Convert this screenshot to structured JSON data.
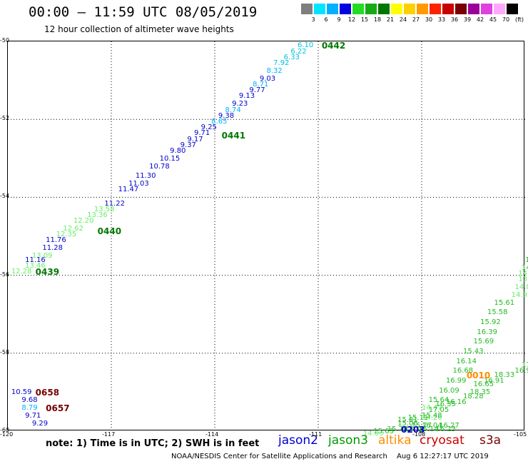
{
  "title": "00:00 – 11:59 UTC 08/05/2019",
  "subtitle": "12 hour collection of altimeter wave heights",
  "legend": {
    "unit": "(ft)",
    "bins": [
      {
        "label": "3",
        "color": "#7f7f7f"
      },
      {
        "label": "6",
        "color": "#00e5ff"
      },
      {
        "label": "9",
        "color": "#00b0ff"
      },
      {
        "label": "12",
        "color": "#0000e0"
      },
      {
        "label": "15",
        "color": "#22dd22"
      },
      {
        "label": "18",
        "color": "#16aa16"
      },
      {
        "label": "21",
        "color": "#007700"
      },
      {
        "label": "24",
        "color": "#ffff00"
      },
      {
        "label": "27",
        "color": "#ffd000"
      },
      {
        "label": "30",
        "color": "#ff9a00"
      },
      {
        "label": "33",
        "color": "#ff2200"
      },
      {
        "label": "36",
        "color": "#c80000"
      },
      {
        "label": "39",
        "color": "#7a0000"
      },
      {
        "label": "42",
        "color": "#9a009a"
      },
      {
        "label": "45",
        "color": "#e040e0"
      },
      {
        "label": "70",
        "color": "#ffa8ff"
      },
      {
        "label": "",
        "color": "#000000"
      }
    ]
  },
  "axes": {
    "lat_ticks": [
      "-50",
      "-52",
      "-54",
      "-56",
      "-58",
      "-60"
    ],
    "lon_ticks": [
      "-120",
      "-117",
      "-114",
      "-111",
      "-108",
      "-105"
    ]
  },
  "note": "note: 1) Time is in UTC; 2) SWH is in feet",
  "satellites": [
    {
      "name": "jason2",
      "color": "#0000cc"
    },
    {
      "name": "jason3",
      "color": "#009900"
    },
    {
      "name": "altika",
      "color": "#ff8c00"
    },
    {
      "name": "cryosat",
      "color": "#cc0000"
    },
    {
      "name": "s3a",
      "color": "#770000"
    }
  ],
  "footer": "NOAA/NESDIS Center for Satellite Applications and Research",
  "timestamp": "Aug  6 12:27:17 UTC 2019",
  "map": {
    "time_labels": [
      {
        "text": "0442",
        "lon": -110.9,
        "lat": -50.1,
        "color": "#007700"
      },
      {
        "text": "0441",
        "lon": -113.8,
        "lat": -52.4,
        "color": "#007700"
      },
      {
        "text": "0440",
        "lon": -117.4,
        "lat": -54.85,
        "color": "#007700"
      },
      {
        "text": "0439",
        "lon": -119.2,
        "lat": -55.9,
        "color": "#007700"
      },
      {
        "text": "0658",
        "lon": -119.2,
        "lat": -59.0,
        "color": "#770000"
      },
      {
        "text": "0657",
        "lon": -118.9,
        "lat": -59.4,
        "color": "#770000"
      },
      {
        "text": "0010",
        "lon": -106.7,
        "lat": -58.55,
        "color": "#ff8c00"
      },
      {
        "text": "0203",
        "lon": -108.6,
        "lat": -59.95,
        "color": "#0000cc"
      }
    ],
    "swh": [
      {
        "text": "6.10",
        "lon": -111.6,
        "lat": -50.1,
        "color": "#00c0e0"
      },
      {
        "text": "6.22",
        "lon": -111.8,
        "lat": -50.25,
        "color": "#00c0e0"
      },
      {
        "text": "6.33",
        "lon": -112.0,
        "lat": -50.4,
        "color": "#00c0e0"
      },
      {
        "text": "7.92",
        "lon": -112.3,
        "lat": -50.55,
        "color": "#00c0e0"
      },
      {
        "text": "8.32",
        "lon": -112.5,
        "lat": -50.75,
        "color": "#00b0ff"
      },
      {
        "text": "9.03",
        "lon": -112.7,
        "lat": -50.95,
        "color": "#0000cc"
      },
      {
        "text": "8.71",
        "lon": -112.9,
        "lat": -51.1,
        "color": "#00b0ff"
      },
      {
        "text": "9.77",
        "lon": -113.0,
        "lat": -51.25,
        "color": "#0000cc"
      },
      {
        "text": "9.13",
        "lon": -113.3,
        "lat": -51.4,
        "color": "#0000cc"
      },
      {
        "text": "9.23",
        "lon": -113.5,
        "lat": -51.6,
        "color": "#0000cc"
      },
      {
        "text": "8.74",
        "lon": -113.7,
        "lat": -51.75,
        "color": "#00b0ff"
      },
      {
        "text": "9.38",
        "lon": -113.9,
        "lat": -51.9,
        "color": "#0000cc"
      },
      {
        "text": "8.65",
        "lon": -114.1,
        "lat": -52.05,
        "color": "#00b0ff"
      },
      {
        "text": "9.25",
        "lon": -114.4,
        "lat": -52.2,
        "color": "#0000cc"
      },
      {
        "text": "9.71",
        "lon": -114.6,
        "lat": -52.35,
        "color": "#0000cc"
      },
      {
        "text": "9.17",
        "lon": -114.8,
        "lat": -52.5,
        "color": "#0000cc"
      },
      {
        "text": "9.37",
        "lon": -115.0,
        "lat": -52.65,
        "color": "#0000cc"
      },
      {
        "text": "9.80",
        "lon": -115.3,
        "lat": -52.8,
        "color": "#0000cc"
      },
      {
        "text": "10.15",
        "lon": -115.6,
        "lat": -53.0,
        "color": "#0000cc"
      },
      {
        "text": "10.78",
        "lon": -115.9,
        "lat": -53.2,
        "color": "#0000cc"
      },
      {
        "text": "11.30",
        "lon": -116.3,
        "lat": -53.45,
        "color": "#0000cc"
      },
      {
        "text": "11.03",
        "lon": -116.5,
        "lat": -53.65,
        "color": "#0000cc"
      },
      {
        "text": "11.47",
        "lon": -116.8,
        "lat": -53.8,
        "color": "#0000cc"
      },
      {
        "text": "11.22",
        "lon": -117.2,
        "lat": -54.15,
        "color": "#0000cc"
      },
      {
        "text": "13.58",
        "lon": -117.5,
        "lat": -54.3,
        "color": "#66ee66"
      },
      {
        "text": "13.36",
        "lon": -117.7,
        "lat": -54.45,
        "color": "#66ee66"
      },
      {
        "text": "12.20",
        "lon": -118.1,
        "lat": -54.6,
        "color": "#66ee66"
      },
      {
        "text": "12.62",
        "lon": -118.4,
        "lat": -54.8,
        "color": "#66ee66"
      },
      {
        "text": "12.35",
        "lon": -118.6,
        "lat": -54.95,
        "color": "#66ee66"
      },
      {
        "text": "11.76",
        "lon": -118.9,
        "lat": -55.1,
        "color": "#0000cc"
      },
      {
        "text": "11.28",
        "lon": -119.0,
        "lat": -55.3,
        "color": "#0000cc"
      },
      {
        "text": "13.09",
        "lon": -119.3,
        "lat": -55.5,
        "color": "#66ee66"
      },
      {
        "text": "11.16",
        "lon": -119.5,
        "lat": -55.6,
        "color": "#0000cc"
      },
      {
        "text": "13.46",
        "lon": -119.5,
        "lat": -55.75,
        "color": "#66ee66"
      },
      {
        "text": "12.28",
        "lon": -119.9,
        "lat": -55.9,
        "color": "#66ee66"
      },
      {
        "text": "10.59",
        "lon": -119.9,
        "lat": -59.0,
        "color": "#0000cc"
      },
      {
        "text": "9.68",
        "lon": -119.6,
        "lat": -59.2,
        "color": "#0000cc"
      },
      {
        "text": "8.79",
        "lon": -119.6,
        "lat": -59.4,
        "color": "#00b0ff"
      },
      {
        "text": "9.71",
        "lon": -119.5,
        "lat": -59.6,
        "color": "#0000cc"
      },
      {
        "text": "9.29",
        "lon": -119.3,
        "lat": -59.8,
        "color": "#0000cc"
      },
      {
        "text": "17",
        "lon": -105.0,
        "lat": -55.6,
        "color": "#22bb22"
      },
      {
        "text": "14.",
        "lon": -105.1,
        "lat": -55.8,
        "color": "#22bb22"
      },
      {
        "text": "14.2",
        "lon": -105.2,
        "lat": -55.95,
        "color": "#66ee66"
      },
      {
        "text": "13.96",
        "lon": -105.2,
        "lat": -56.1,
        "color": "#66ee66"
      },
      {
        "text": "14.85",
        "lon": -105.3,
        "lat": -56.3,
        "color": "#66ee66"
      },
      {
        "text": "14.92",
        "lon": -105.4,
        "lat": -56.5,
        "color": "#66ee66"
      },
      {
        "text": "15.61",
        "lon": -105.9,
        "lat": -56.7,
        "color": "#22bb22"
      },
      {
        "text": "15.58",
        "lon": -106.1,
        "lat": -56.95,
        "color": "#22bb22"
      },
      {
        "text": "15.92",
        "lon": -106.3,
        "lat": -57.2,
        "color": "#22bb22"
      },
      {
        "text": "16.39",
        "lon": -106.4,
        "lat": -57.45,
        "color": "#22bb22"
      },
      {
        "text": "15.69",
        "lon": -106.5,
        "lat": -57.7,
        "color": "#22bb22"
      },
      {
        "text": "15.43",
        "lon": -106.8,
        "lat": -57.95,
        "color": "#22bb22"
      },
      {
        "text": "16.14",
        "lon": -107.0,
        "lat": -58.2,
        "color": "#22bb22"
      },
      {
        "text": "16.68",
        "lon": -107.1,
        "lat": -58.45,
        "color": "#22bb22"
      },
      {
        "text": "16.99",
        "lon": -107.3,
        "lat": -58.7,
        "color": "#22bb22"
      },
      {
        "text": "16.09",
        "lon": -107.5,
        "lat": -58.95,
        "color": "#22bb22"
      },
      {
        "text": "15.64",
        "lon": -107.8,
        "lat": -59.2,
        "color": "#22bb22"
      },
      {
        "text": "14.47",
        "lon": -108.0,
        "lat": -59.4,
        "color": "#66ee66"
      },
      {
        "text": "14.26",
        "lon": -108.0,
        "lat": -59.65,
        "color": "#66ee66"
      },
      {
        "text": "16.04",
        "lon": -108.0,
        "lat": -59.85,
        "color": "#22bb22"
      },
      {
        "text": "16.23",
        "lon": -107.6,
        "lat": -59.95,
        "color": "#22bb22"
      },
      {
        "text": "16.27",
        "lon": -107.5,
        "lat": -59.85,
        "color": "#22bb22"
      },
      {
        "text": "17",
        "lon": -105.1,
        "lat": -58.3,
        "color": "#22bb22"
      },
      {
        "text": "16.93",
        "lon": -105.3,
        "lat": -58.45,
        "color": "#22bb22"
      },
      {
        "text": "18.33",
        "lon": -105.9,
        "lat": -58.55,
        "color": "#22bb22"
      },
      {
        "text": "16.91",
        "lon": -106.2,
        "lat": -58.7,
        "color": "#22bb22"
      },
      {
        "text": "16.65",
        "lon": -106.5,
        "lat": -58.8,
        "color": "#22bb22"
      },
      {
        "text": "18.35",
        "lon": -106.6,
        "lat": -59.0,
        "color": "#22bb22"
      },
      {
        "text": "18.28",
        "lon": -106.8,
        "lat": -59.1,
        "color": "#22bb22"
      },
      {
        "text": "16.16",
        "lon": -107.3,
        "lat": -59.25,
        "color": "#22bb22"
      },
      {
        "text": "16.35",
        "lon": -107.6,
        "lat": -59.3,
        "color": "#22bb22"
      },
      {
        "text": "17.05",
        "lon": -107.8,
        "lat": -59.45,
        "color": "#22bb22"
      },
      {
        "text": "15.48",
        "lon": -108.0,
        "lat": -59.6,
        "color": "#22bb22"
      },
      {
        "text": "15.11",
        "lon": -108.4,
        "lat": -59.65,
        "color": "#22bb22"
      },
      {
        "text": "15.81",
        "lon": -108.7,
        "lat": -59.7,
        "color": "#22bb22"
      },
      {
        "text": "15.06",
        "lon": -108.7,
        "lat": -59.8,
        "color": "#22bb22"
      },
      {
        "text": "15.77",
        "lon": -108.3,
        "lat": -59.85,
        "color": "#22bb22"
      },
      {
        "text": "15.16",
        "lon": -108.5,
        "lat": -59.95,
        "color": "#22bb22"
      },
      {
        "text": "15.79",
        "lon": -109.0,
        "lat": -59.95,
        "color": "#22bb22"
      },
      {
        "text": "15.14",
        "lon": -108.1,
        "lat": -59.95,
        "color": "#22bb22"
      },
      {
        "text": "15.63",
        "lon": -109.4,
        "lat": -60.0,
        "color": "#22bb22"
      },
      {
        "text": "14.03",
        "lon": -109.7,
        "lat": -60.05,
        "color": "#66ee66"
      }
    ]
  }
}
